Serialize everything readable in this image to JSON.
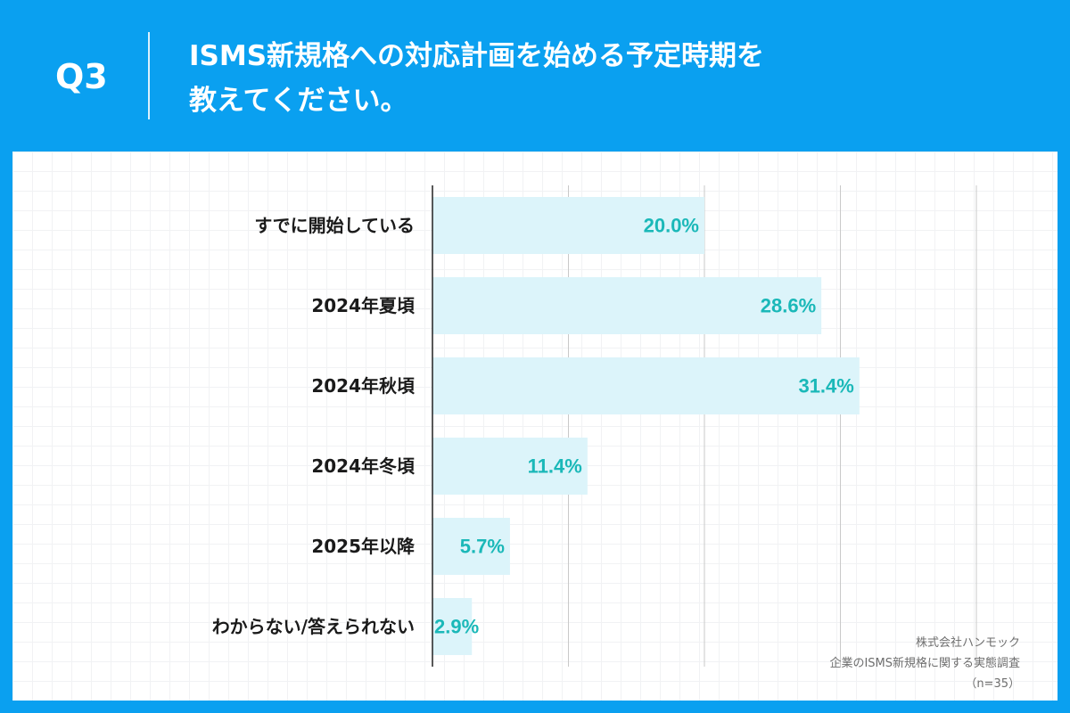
{
  "header": {
    "question_number": "Q3",
    "question_line1": "ISMS新規格への対応計画を始める予定時期を",
    "question_line2": "教えてください。"
  },
  "chart_data": {
    "type": "bar",
    "orientation": "horizontal",
    "categories": [
      "すでに開始している",
      "2024年夏頃",
      "2024年秋頃",
      "2024年冬頃",
      "2025年以降",
      "わからない/答えられない"
    ],
    "values": [
      20.0,
      28.6,
      31.4,
      11.4,
      5.7,
      2.9
    ],
    "value_labels": [
      "20.0%",
      "28.6%",
      "31.4%",
      "11.4%",
      "5.7%",
      "2.9%"
    ],
    "xlim": [
      0,
      40
    ],
    "grid": "vertical",
    "bar_color": "#dcf4fa",
    "label_color": "#1ab8b8"
  },
  "footer": {
    "company": "株式会社ハンモック",
    "survey": "企業のISMS新規格に関する実態調査",
    "sample": "（n=35）"
  }
}
